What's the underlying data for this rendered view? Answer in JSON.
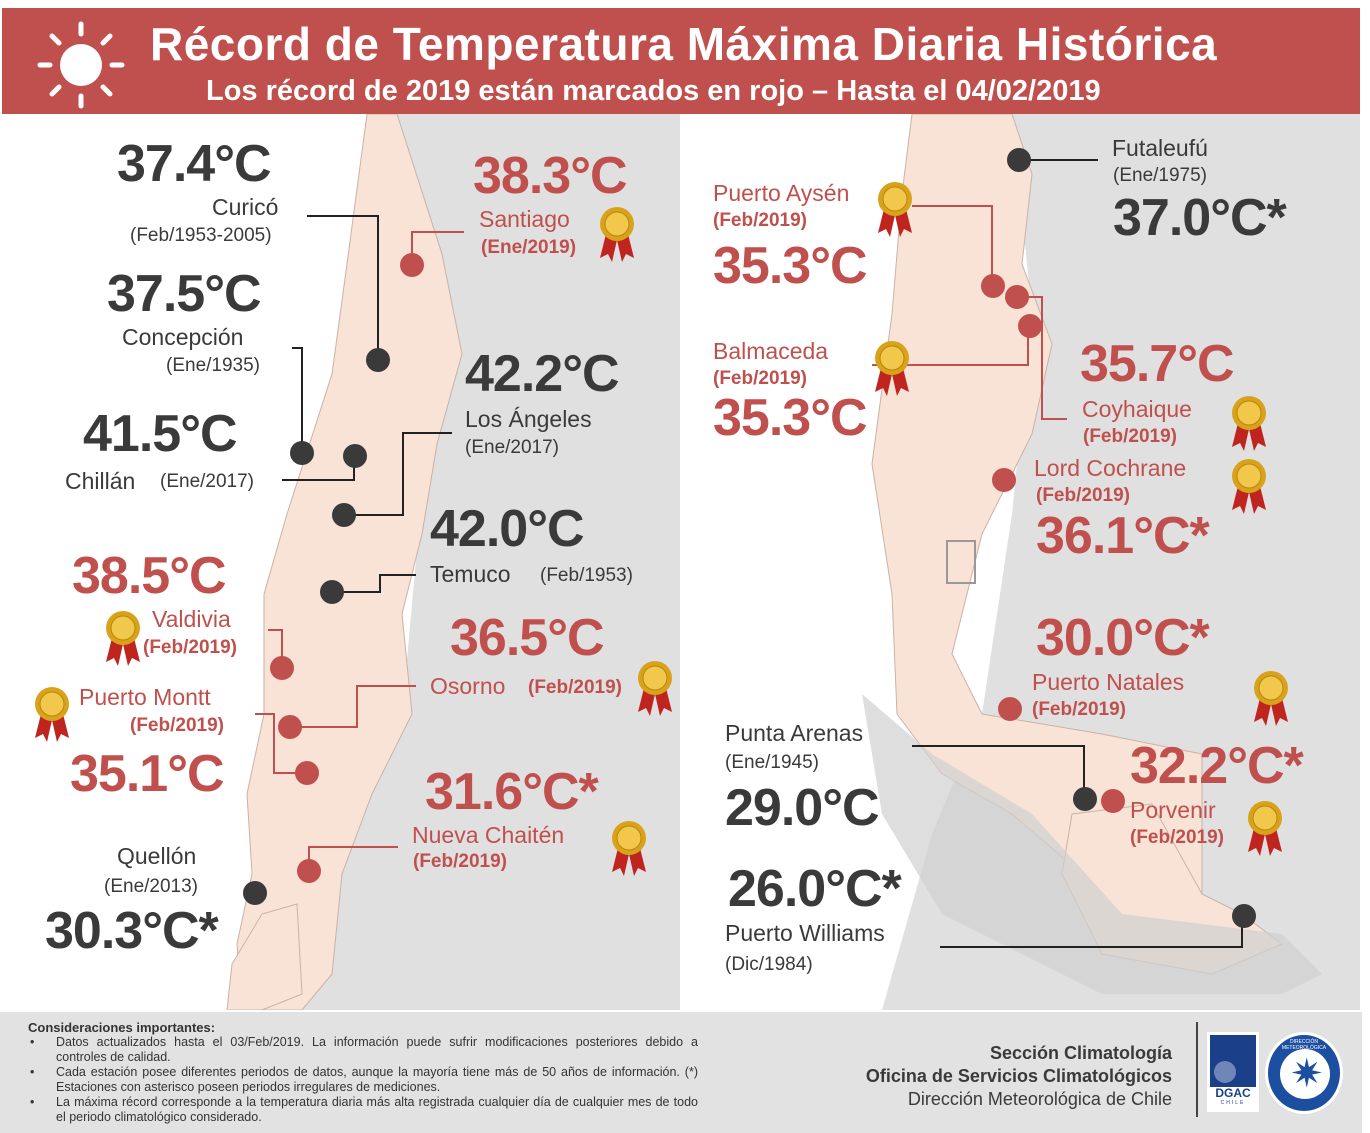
{
  "header": {
    "title": "Récord de Temperatura Máxima Diaria Histórica",
    "subtitle": "Los récord de 2019 están marcados en rojo – Hasta el 04/02/2019",
    "icon": "sun-icon"
  },
  "colors": {
    "banner": "#c0504d",
    "record_2019": "#c0504d",
    "historic": "#3a3a3a",
    "land_chile": "#f9e3d6",
    "land_other": "#e0e0e0"
  },
  "left_map": {
    "stations": [
      {
        "name": "Curicó",
        "temp": "37.4°C",
        "date": "(Feb/1953-2005)",
        "record_2019": false
      },
      {
        "name": "Santiago",
        "temp": "38.3°C",
        "date": "(Ene/2019)",
        "record_2019": true
      },
      {
        "name": "Concepción",
        "temp": "37.5°C",
        "date": "(Ene/1935)",
        "record_2019": false
      },
      {
        "name": "Los Ángeles",
        "temp": "42.2°C",
        "date": "(Ene/2017)",
        "record_2019": false
      },
      {
        "name": "Chillán",
        "temp": "41.5°C",
        "date": "(Ene/2017)",
        "record_2019": false
      },
      {
        "name": "Temuco",
        "temp": "42.0°C",
        "date": "(Feb/1953)",
        "record_2019": false
      },
      {
        "name": "Valdivia",
        "temp": "38.5°C",
        "date": "(Feb/2019)",
        "record_2019": true
      },
      {
        "name": "Osorno",
        "temp": "36.5°C",
        "date": "(Feb/2019)",
        "record_2019": true
      },
      {
        "name": "Puerto Montt",
        "temp": "35.1°C",
        "date": "(Feb/2019)",
        "record_2019": true
      },
      {
        "name": "Nueva Chaitén",
        "temp": "31.6°C*",
        "date": "(Feb/2019)",
        "record_2019": true
      },
      {
        "name": "Quellón",
        "temp": "30.3°C*",
        "date": "(Ene/2013)",
        "record_2019": false
      }
    ]
  },
  "right_map": {
    "stations": [
      {
        "name": "Futaleufú",
        "temp": "37.0°C*",
        "date": "(Ene/1975)",
        "record_2019": false
      },
      {
        "name": "Puerto Aysén",
        "temp": "35.3°C",
        "date": "(Feb/2019)",
        "record_2019": true
      },
      {
        "name": "Balmaceda",
        "temp": "35.3°C",
        "date": "(Feb/2019)",
        "record_2019": true
      },
      {
        "name": "Coyhaique",
        "temp": "35.7°C",
        "date": "(Feb/2019)",
        "record_2019": true
      },
      {
        "name": "Lord Cochrane",
        "temp": "36.1°C*",
        "date": "(Feb/2019)",
        "record_2019": true
      },
      {
        "name": "Puerto Natales",
        "temp": "30.0°C*",
        "date": "(Feb/2019)",
        "record_2019": true
      },
      {
        "name": "Punta Arenas",
        "temp": "29.0°C",
        "date": "(Ene/1945)",
        "record_2019": false
      },
      {
        "name": "Porvenir",
        "temp": "32.2°C*",
        "date": "(Feb/2019)",
        "record_2019": true
      },
      {
        "name": "Puerto Williams",
        "temp": "26.0°C*",
        "date": "(Dic/1984)",
        "record_2019": false
      }
    ]
  },
  "footer": {
    "notes_title": "Consideraciones importantes:",
    "notes": [
      "Datos actualizados hasta el 03/Feb/2019. La información puede sufrir modificaciones posteriores debido a controles de calidad.",
      "Cada estación posee diferentes periodos de datos, aunque la mayoría tiene más de 50 años de información. (*) Estaciones con asterisco poseen periodos irregulares de mediciones.",
      "La máxima récord corresponde a la temperatura diaria más alta registrada cualquier día de cualquier mes de todo el periodo climatológico considerado."
    ],
    "org_line1": "Sección Climatología",
    "org_line2": "Oficina de Servicios Climatológicos",
    "org_line3": "Dirección Meteorológica de Chile",
    "logo1_text": "DGAC",
    "logo1_sub": "CHILE",
    "logo2_text": "DIRECCIÓN METEOROLÓGICA"
  }
}
